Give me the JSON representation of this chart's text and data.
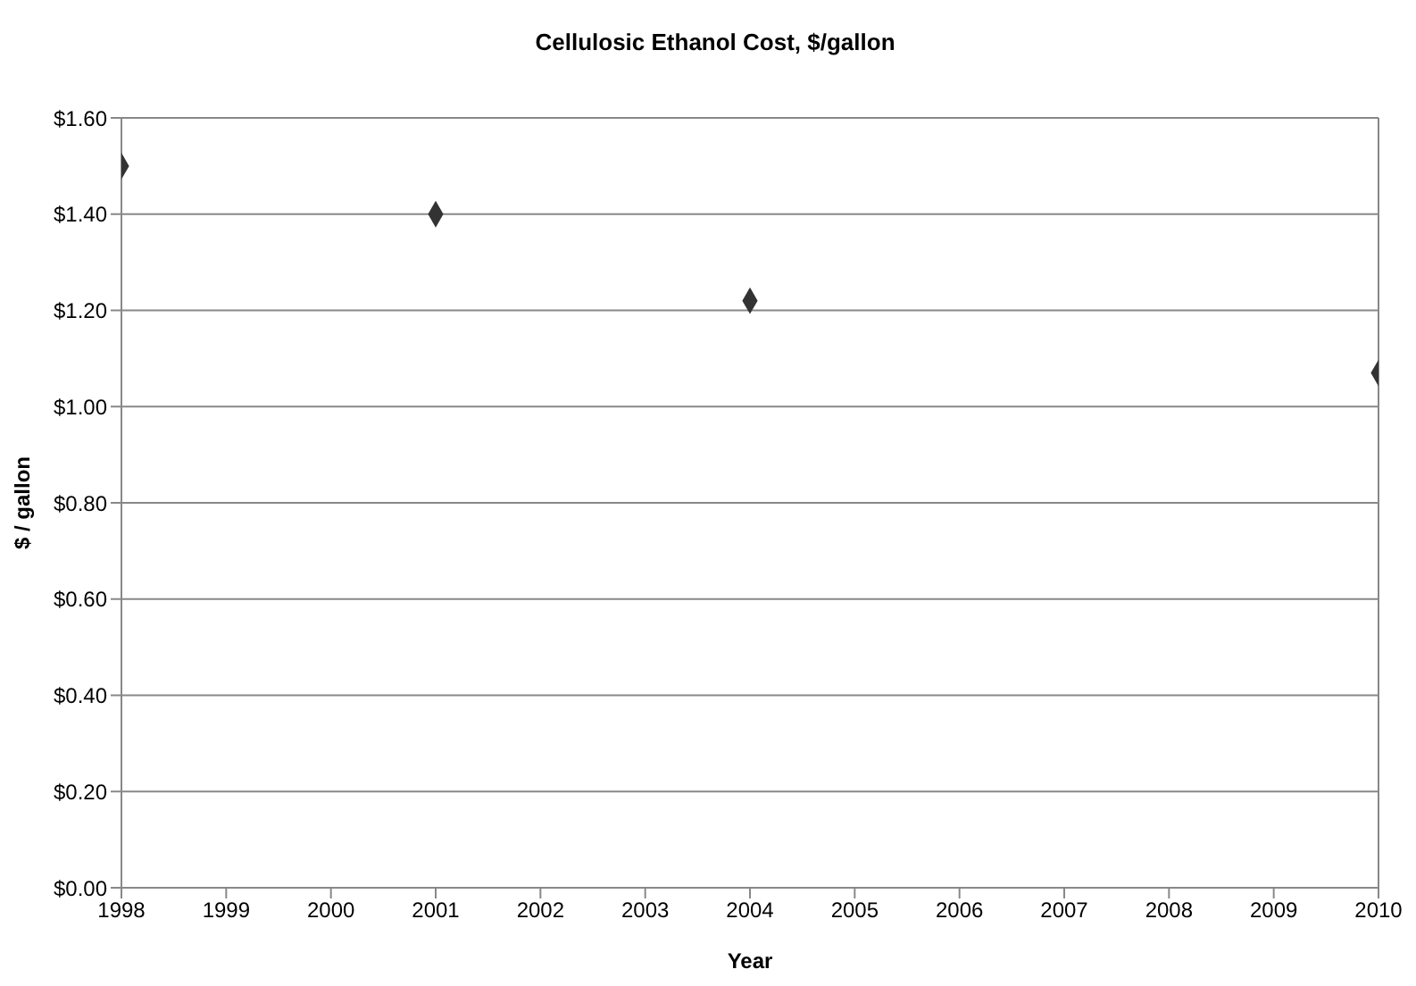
{
  "chart_data": {
    "type": "scatter",
    "title": "Cellulosic Ethanol Cost, $/gallon",
    "xlabel": "Year",
    "ylabel": "$ / gallon",
    "x": [
      1998,
      2001,
      2004,
      2010
    ],
    "series": [
      {
        "color": "#333333",
        "values": [
          1.5,
          1.4,
          1.22,
          1.07
        ]
      }
    ],
    "xlim": [
      1998,
      2010
    ],
    "xticks": [
      1998,
      1999,
      2000,
      2001,
      2002,
      2003,
      2004,
      2005,
      2006,
      2007,
      2008,
      2009,
      2010
    ],
    "ylim": [
      0,
      1.6
    ],
    "yticks": [
      {
        "value": 0,
        "label": "$0.00"
      },
      {
        "value": 0.2,
        "label": "$0.20"
      },
      {
        "value": 0.4,
        "label": "$0.40"
      },
      {
        "value": 0.6,
        "label": "$0.60"
      },
      {
        "value": 0.8,
        "label": "$0.80"
      },
      {
        "value": 1,
        "label": "$1.00"
      },
      {
        "value": 1.2,
        "label": "$1.20"
      },
      {
        "value": 1.4,
        "label": "$1.40"
      },
      {
        "value": 1.6,
        "label": "$1.60"
      }
    ],
    "grid": "y",
    "legend": false,
    "marker": "diamond"
  }
}
